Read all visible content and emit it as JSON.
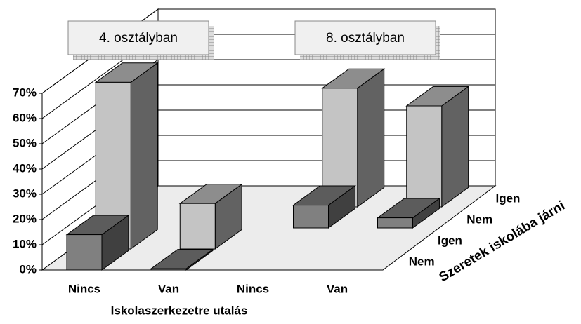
{
  "chart_data": {
    "type": "bar3d",
    "annotations": [
      "4. osztályban",
      "8. osztályban"
    ],
    "x_label": "Iskolaszerkezetre utalás",
    "z_label": "Szeretek iskolába járni",
    "categories": [
      "Nincs",
      "Van",
      "Nincs",
      "Van"
    ],
    "series": [
      {
        "name": "Nem",
        "color": "#808080",
        "values": [
          14,
          0.5,
          null,
          null
        ]
      },
      {
        "name": "Igen",
        "color": "#c4c4c4",
        "values": [
          66,
          18,
          null,
          null
        ]
      },
      {
        "name": "Nem",
        "color": "#808080",
        "values": [
          null,
          null,
          9,
          4
        ]
      },
      {
        "name": "Igen",
        "color": "#c4c4c4",
        "values": [
          null,
          null,
          47,
          40
        ]
      }
    ],
    "ylim": [
      0,
      70
    ],
    "yticks": [
      {
        "value": 0,
        "label": "0%"
      },
      {
        "value": 10,
        "label": "10%"
      },
      {
        "value": 20,
        "label": "20%"
      },
      {
        "value": 30,
        "label": "30%"
      },
      {
        "value": 40,
        "label": "40%"
      },
      {
        "value": 50,
        "label": "50%"
      },
      {
        "value": 60,
        "label": "60%"
      },
      {
        "value": 70,
        "label": "70%"
      }
    ],
    "grid": true
  }
}
